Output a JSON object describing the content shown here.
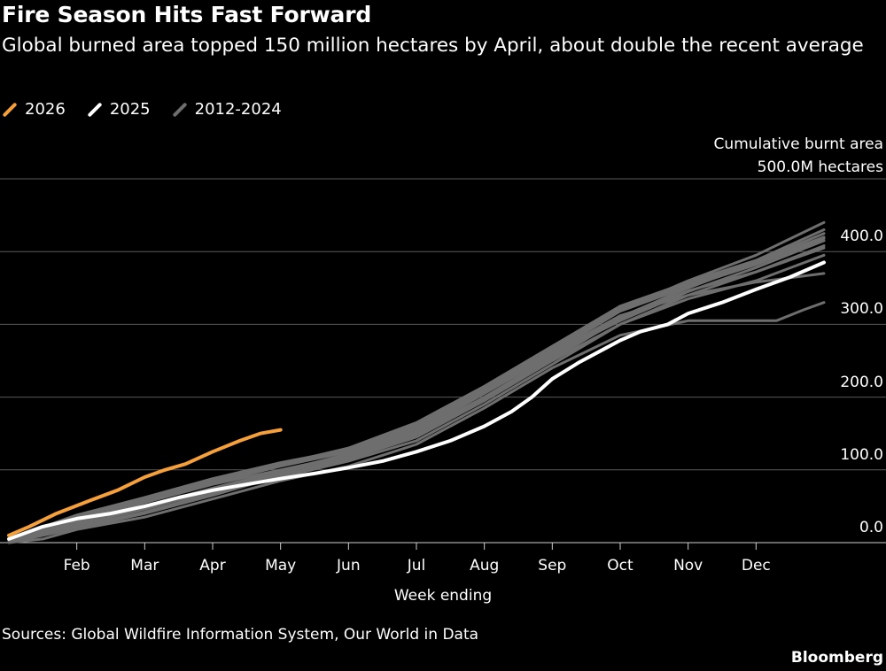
{
  "title": "Fire Season Hits Fast Forward",
  "subtitle": "Global burned area topped 150 million hectares by April, about double the recent average",
  "legend": [
    {
      "label": "2026",
      "color": "#f5a03a"
    },
    {
      "label": "2025",
      "color": "#ffffff"
    },
    {
      "label": "2012-2024",
      "color": "#6e6e6e"
    }
  ],
  "unit_line1": "Cumulative burnt area",
  "unit_line2": "500.0M hectares",
  "xlabel": "Week ending",
  "sources": "Sources: Global Wildfire Information System, Our World in Data",
  "brand": "Bloomberg",
  "chart_data": {
    "type": "line",
    "x_unit": "month (1 = Jan 1, 13 = end of Dec)",
    "xlim": [
      1,
      13
    ],
    "ylim": [
      0,
      500
    ],
    "y_ticks": [
      "0.0",
      "100.0",
      "200.0",
      "300.0",
      "400.0"
    ],
    "y_tick_values": [
      0,
      100,
      200,
      300,
      400
    ],
    "x_ticks": [
      "Feb",
      "Mar",
      "Apr",
      "May",
      "Jun",
      "Jul",
      "Aug",
      "Sep",
      "Oct",
      "Nov",
      "Dec"
    ],
    "x_tick_values": [
      2,
      3,
      4,
      5,
      6,
      7,
      8,
      9,
      10,
      11,
      12
    ],
    "grid": true,
    "series": [
      {
        "name": "2026",
        "color": "#f5a03a",
        "group": "2026",
        "points": [
          [
            1.0,
            10
          ],
          [
            1.3,
            22
          ],
          [
            1.7,
            40
          ],
          [
            2.2,
            58
          ],
          [
            2.6,
            72
          ],
          [
            3.0,
            90
          ],
          [
            3.3,
            100
          ],
          [
            3.6,
            108
          ],
          [
            4.0,
            125
          ],
          [
            4.4,
            140
          ],
          [
            4.7,
            150
          ],
          [
            5.0,
            155
          ]
        ]
      },
      {
        "name": "2025",
        "color": "#ffffff",
        "group": "2025",
        "points": [
          [
            1.0,
            5
          ],
          [
            1.5,
            22
          ],
          [
            2.0,
            33
          ],
          [
            2.5,
            40
          ],
          [
            3.0,
            50
          ],
          [
            3.5,
            62
          ],
          [
            4.0,
            72
          ],
          [
            4.5,
            80
          ],
          [
            5.0,
            88
          ],
          [
            5.5,
            95
          ],
          [
            6.0,
            103
          ],
          [
            6.5,
            112
          ],
          [
            7.0,
            125
          ],
          [
            7.5,
            140
          ],
          [
            8.0,
            160
          ],
          [
            8.4,
            180
          ],
          [
            8.7,
            200
          ],
          [
            9.0,
            225
          ],
          [
            9.4,
            248
          ],
          [
            9.8,
            268
          ],
          [
            10.0,
            278
          ],
          [
            10.3,
            290
          ],
          [
            10.7,
            300
          ],
          [
            11.0,
            315
          ],
          [
            11.5,
            330
          ],
          [
            12.0,
            348
          ],
          [
            12.5,
            365
          ],
          [
            13.0,
            385
          ]
        ]
      },
      {
        "group": "2012-2024",
        "color": "#6e6e6e",
        "points": [
          [
            1.0,
            2
          ],
          [
            2.0,
            30
          ],
          [
            3.0,
            55
          ],
          [
            4.0,
            80
          ],
          [
            5.0,
            100
          ],
          [
            6.0,
            120
          ],
          [
            7.0,
            150
          ],
          [
            8.0,
            200
          ],
          [
            9.0,
            255
          ],
          [
            10.0,
            310
          ],
          [
            11.0,
            350
          ],
          [
            12.0,
            385
          ],
          [
            13.0,
            420
          ]
        ]
      },
      {
        "group": "2012-2024",
        "color": "#6e6e6e",
        "points": [
          [
            1.0,
            5
          ],
          [
            2.0,
            38
          ],
          [
            3.0,
            62
          ],
          [
            4.0,
            88
          ],
          [
            5.0,
            110
          ],
          [
            6.0,
            128
          ],
          [
            7.0,
            160
          ],
          [
            8.0,
            210
          ],
          [
            9.0,
            265
          ],
          [
            10.0,
            320
          ],
          [
            11.0,
            360
          ],
          [
            12.0,
            395
          ],
          [
            13.0,
            440
          ]
        ]
      },
      {
        "group": "2012-2024",
        "color": "#6e6e6e",
        "points": [
          [
            1.0,
            0
          ],
          [
            2.0,
            20
          ],
          [
            3.0,
            40
          ],
          [
            4.0,
            65
          ],
          [
            5.0,
            92
          ],
          [
            6.0,
            115
          ],
          [
            7.0,
            145
          ],
          [
            8.0,
            195
          ],
          [
            9.0,
            250
          ],
          [
            10.0,
            300
          ],
          [
            11.0,
            340
          ],
          [
            12.0,
            372
          ],
          [
            13.0,
            405
          ]
        ]
      },
      {
        "group": "2012-2024",
        "color": "#6e6e6e",
        "points": [
          [
            1.0,
            3
          ],
          [
            2.0,
            28
          ],
          [
            3.0,
            48
          ],
          [
            4.0,
            70
          ],
          [
            5.0,
            95
          ],
          [
            6.0,
            118
          ],
          [
            7.0,
            152
          ],
          [
            8.0,
            205
          ],
          [
            9.0,
            258
          ],
          [
            10.0,
            305
          ],
          [
            11.0,
            345
          ],
          [
            12.0,
            378
          ],
          [
            13.0,
            415
          ]
        ]
      },
      {
        "group": "2012-2024",
        "color": "#6e6e6e",
        "points": [
          [
            1.0,
            4
          ],
          [
            2.0,
            33
          ],
          [
            3.0,
            58
          ],
          [
            4.0,
            85
          ],
          [
            5.0,
            108
          ],
          [
            6.0,
            130
          ],
          [
            7.0,
            165
          ],
          [
            8.0,
            215
          ],
          [
            9.0,
            270
          ],
          [
            10.0,
            325
          ],
          [
            11.0,
            358
          ],
          [
            12.0,
            388
          ],
          [
            13.0,
            430
          ]
        ]
      },
      {
        "group": "2012-2024",
        "color": "#6e6e6e",
        "points": [
          [
            1.0,
            1
          ],
          [
            2.0,
            22
          ],
          [
            3.0,
            42
          ],
          [
            4.0,
            68
          ],
          [
            5.0,
            90
          ],
          [
            6.0,
            112
          ],
          [
            7.0,
            140
          ],
          [
            8.0,
            190
          ],
          [
            9.0,
            245
          ],
          [
            10.0,
            300
          ],
          [
            11.0,
            335
          ],
          [
            12.0,
            360
          ],
          [
            13.0,
            395
          ]
        ]
      },
      {
        "group": "2012-2024",
        "color": "#6e6e6e",
        "points": [
          [
            1.0,
            0
          ],
          [
            1.5,
            5
          ],
          [
            2.0,
            18
          ],
          [
            3.0,
            35
          ],
          [
            4.0,
            60
          ],
          [
            5.0,
            85
          ],
          [
            6.0,
            105
          ],
          [
            7.0,
            135
          ],
          [
            8.0,
            185
          ],
          [
            9.0,
            240
          ],
          [
            10.0,
            285
          ],
          [
            11.0,
            305
          ],
          [
            12.0,
            305
          ],
          [
            12.3,
            305
          ],
          [
            12.7,
            320
          ],
          [
            13.0,
            330
          ]
        ]
      },
      {
        "group": "2012-2024",
        "color": "#6e6e6e",
        "points": [
          [
            1.0,
            2
          ],
          [
            2.0,
            26
          ],
          [
            3.0,
            50
          ],
          [
            4.0,
            75
          ],
          [
            5.0,
            98
          ],
          [
            6.0,
            122
          ],
          [
            7.0,
            155
          ],
          [
            8.0,
            205
          ],
          [
            9.0,
            260
          ],
          [
            10.0,
            312
          ],
          [
            11.0,
            340
          ],
          [
            12.0,
            358
          ],
          [
            13.0,
            370
          ]
        ]
      },
      {
        "group": "2012-2024",
        "color": "#6e6e6e",
        "points": [
          [
            1.0,
            3
          ],
          [
            2.0,
            30
          ],
          [
            3.0,
            55
          ],
          [
            4.0,
            82
          ],
          [
            5.0,
            105
          ],
          [
            6.0,
            125
          ],
          [
            7.0,
            158
          ],
          [
            8.0,
            208
          ],
          [
            9.0,
            262
          ],
          [
            10.0,
            318
          ],
          [
            11.0,
            352
          ],
          [
            12.0,
            382
          ],
          [
            13.0,
            418
          ]
        ]
      },
      {
        "group": "2012-2024",
        "color": "#6e6e6e",
        "points": [
          [
            1.0,
            2
          ],
          [
            2.0,
            25
          ],
          [
            3.0,
            46
          ],
          [
            4.0,
            72
          ],
          [
            5.0,
            96
          ],
          [
            6.0,
            116
          ],
          [
            7.0,
            148
          ],
          [
            8.0,
            198
          ],
          [
            9.0,
            252
          ],
          [
            10.0,
            308
          ],
          [
            11.0,
            346
          ],
          [
            12.0,
            372
          ],
          [
            13.0,
            408
          ]
        ]
      },
      {
        "group": "2012-2024",
        "color": "#6e6e6e",
        "points": [
          [
            1.0,
            4
          ],
          [
            2.0,
            35
          ],
          [
            3.0,
            60
          ],
          [
            4.0,
            86
          ],
          [
            5.0,
            107
          ],
          [
            6.0,
            127
          ],
          [
            7.0,
            162
          ],
          [
            8.0,
            212
          ],
          [
            9.0,
            268
          ],
          [
            10.0,
            322
          ],
          [
            11.0,
            355
          ],
          [
            12.0,
            386
          ],
          [
            13.0,
            425
          ]
        ]
      }
    ]
  }
}
